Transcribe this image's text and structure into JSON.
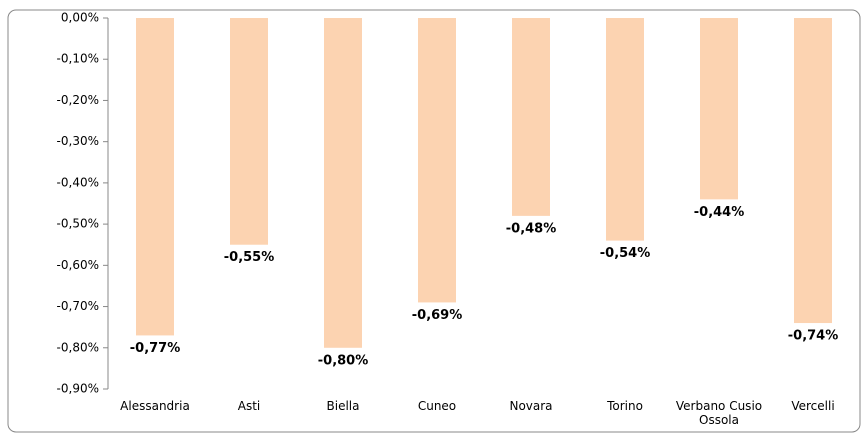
{
  "chart_data": {
    "type": "bar",
    "categories": [
      "Alessandria",
      "Asti",
      "Biella",
      "Cuneo",
      "Novara",
      "Torino",
      "Verbano Cusio Ossola",
      "Vercelli"
    ],
    "values": [
      -0.77,
      -0.55,
      -0.8,
      -0.69,
      -0.48,
      -0.54,
      -0.44,
      -0.74
    ],
    "value_labels": [
      "-0,77%",
      "-0,55%",
      "-0,80%",
      "-0,69%",
      "-0,48%",
      "-0,54%",
      "-0,44%",
      "-0,74%"
    ],
    "color": "#fcd3b1",
    "ylim": [
      -0.9,
      0
    ],
    "yticks": [
      {
        "value": 0,
        "label": "0,00%"
      },
      {
        "value": -0.1,
        "label": "-0,10%"
      },
      {
        "value": -0.2,
        "label": "-0,20%"
      },
      {
        "value": -0.3,
        "label": "-0,30%"
      },
      {
        "value": -0.4,
        "label": "-0,40%"
      },
      {
        "value": -0.5,
        "label": "-0,50%"
      },
      {
        "value": -0.6,
        "label": "-0,60%"
      },
      {
        "value": -0.7,
        "label": "-0,70%"
      },
      {
        "value": -0.8,
        "label": "-0,80%"
      },
      {
        "value": -0.9,
        "label": "-0,90%"
      }
    ],
    "grid": false
  }
}
